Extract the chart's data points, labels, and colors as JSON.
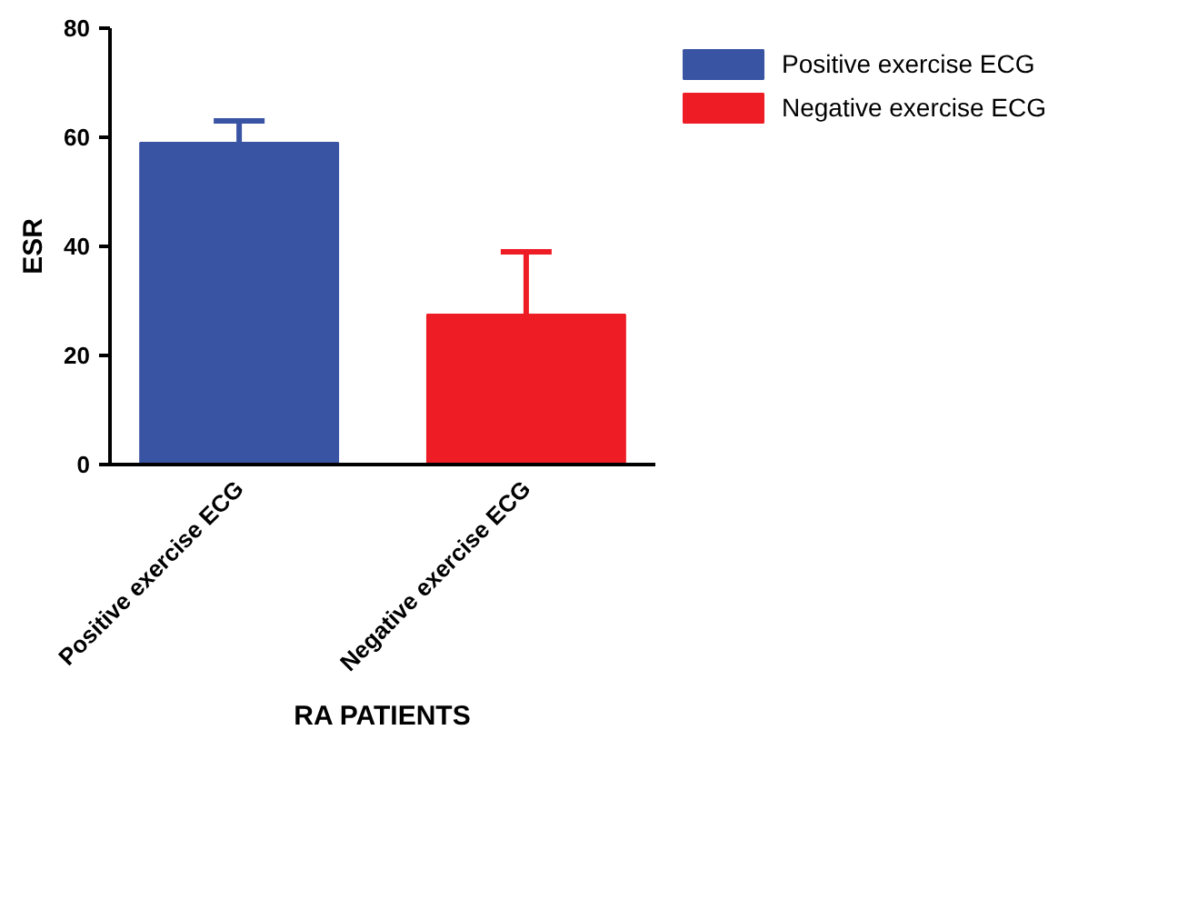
{
  "chart_data": {
    "type": "bar",
    "xlabel": "RA PATIENTS",
    "ylabel": "ESR",
    "categories": [
      "Positive exercise ECG",
      "Negative exercise ECG"
    ],
    "series": [
      {
        "name": "Positive exercise ECG",
        "color": "#3a54a4",
        "values": [
          59,
          null
        ],
        "errors": [
          4,
          null
        ]
      },
      {
        "name": "Negative exercise ECG",
        "color": "#ee1c25",
        "values": [
          null,
          27.5
        ],
        "errors": [
          null,
          11.5
        ]
      }
    ],
    "ylim": [
      0,
      80
    ],
    "yticks": [
      0,
      20,
      40,
      60,
      80
    ],
    "grid": false,
    "legend": "top right"
  }
}
